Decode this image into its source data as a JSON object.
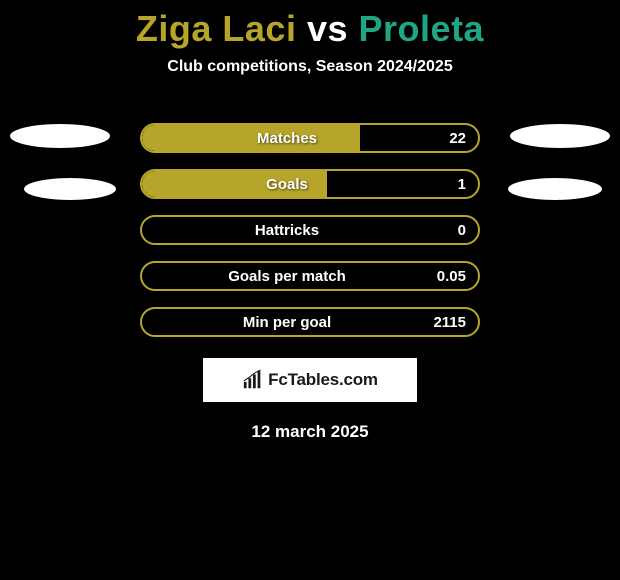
{
  "title": {
    "player1": "Ziga Laci",
    "vs": "vs",
    "player2": "Proleta",
    "color_player1": "#b6a42b",
    "color_vs": "#ffffff",
    "color_player2": "#1fa583"
  },
  "subtitle": "Club competitions, Season 2024/2025",
  "bars": {
    "border_color": "#b6a42b",
    "fill_color": "#b6a42b",
    "rows": [
      {
        "label": "Matches",
        "value": "22",
        "fill_pct": 65
      },
      {
        "label": "Goals",
        "value": "1",
        "fill_pct": 55
      },
      {
        "label": "Hattricks",
        "value": "0",
        "fill_pct": 0
      },
      {
        "label": "Goals per match",
        "value": "0.05",
        "fill_pct": 0
      },
      {
        "label": "Min per goal",
        "value": "2115",
        "fill_pct": 0
      }
    ]
  },
  "brand": "FcTables.com",
  "date": "12 march 2025",
  "colors": {
    "background": "#000000",
    "text": "#ffffff",
    "ellipse": "#ffffff"
  }
}
